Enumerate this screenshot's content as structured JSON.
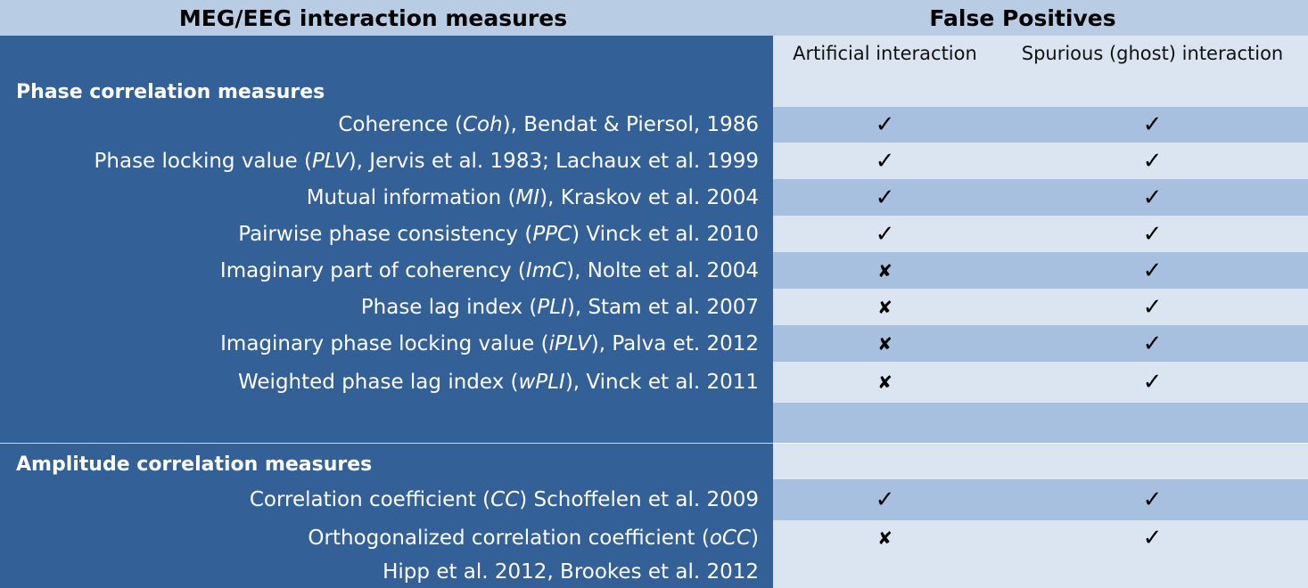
{
  "header": {
    "left_title": "MEG/EEG interaction measures",
    "right_title": "False Positives"
  },
  "subheader": {
    "col_a": "Artificial interaction",
    "col_b": "Spurious (ghost) interaction"
  },
  "sections": [
    {
      "title": "Phase correlation measures",
      "rows": [
        {
          "pre": "Coherence (",
          "abbr": "Coh",
          "post": "), Bendat & Piersol, 1986",
          "artificial": "✓",
          "spurious": "✓"
        },
        {
          "pre": "Phase locking value (",
          "abbr": "PLV",
          "post": "), Jervis et al. 1983; Lachaux et al. 1999",
          "artificial": "✓",
          "spurious": "✓"
        },
        {
          "pre": "Mutual information (",
          "abbr": "MI",
          "post": "), Kraskov et al. 2004",
          "artificial": "✓",
          "spurious": "✓"
        },
        {
          "pre": "Pairwise phase consistency (",
          "abbr": "PPC",
          "post": ") Vinck et al. 2010",
          "artificial": "✓",
          "spurious": "✓"
        },
        {
          "pre": "Imaginary part of coherency (",
          "abbr": "ImC",
          "post": "), Nolte et al. 2004",
          "artificial": "✘",
          "spurious": "✓"
        },
        {
          "pre": "Phase lag index (",
          "abbr": "PLI",
          "post": "), Stam et al. 2007",
          "artificial": "✘",
          "spurious": "✓"
        },
        {
          "pre": "Imaginary phase locking value (",
          "abbr": "iPLV",
          "post": "), Palva et. 2012",
          "artificial": "✘",
          "spurious": "✓"
        },
        {
          "pre": "Weighted phase lag index (",
          "abbr": "wPLI",
          "post": "), Vinck et al. 2011",
          "artificial": "✘",
          "spurious": "✓"
        }
      ]
    },
    {
      "title": "Amplitude correlation measures",
      "rows": [
        {
          "pre": "Correlation coefficient (",
          "abbr": "CC",
          "post": ") Schoffelen et al. 2009",
          "artificial": "✓",
          "spurious": "✓"
        },
        {
          "pre": "Orthogonalized correlation coefficient (",
          "abbr": "oCC",
          "post": ")",
          "artificial": "✘",
          "spurious": "✓"
        }
      ]
    }
  ],
  "continuation": "Hipp et al. 2012, Brookes et al. 2012"
}
